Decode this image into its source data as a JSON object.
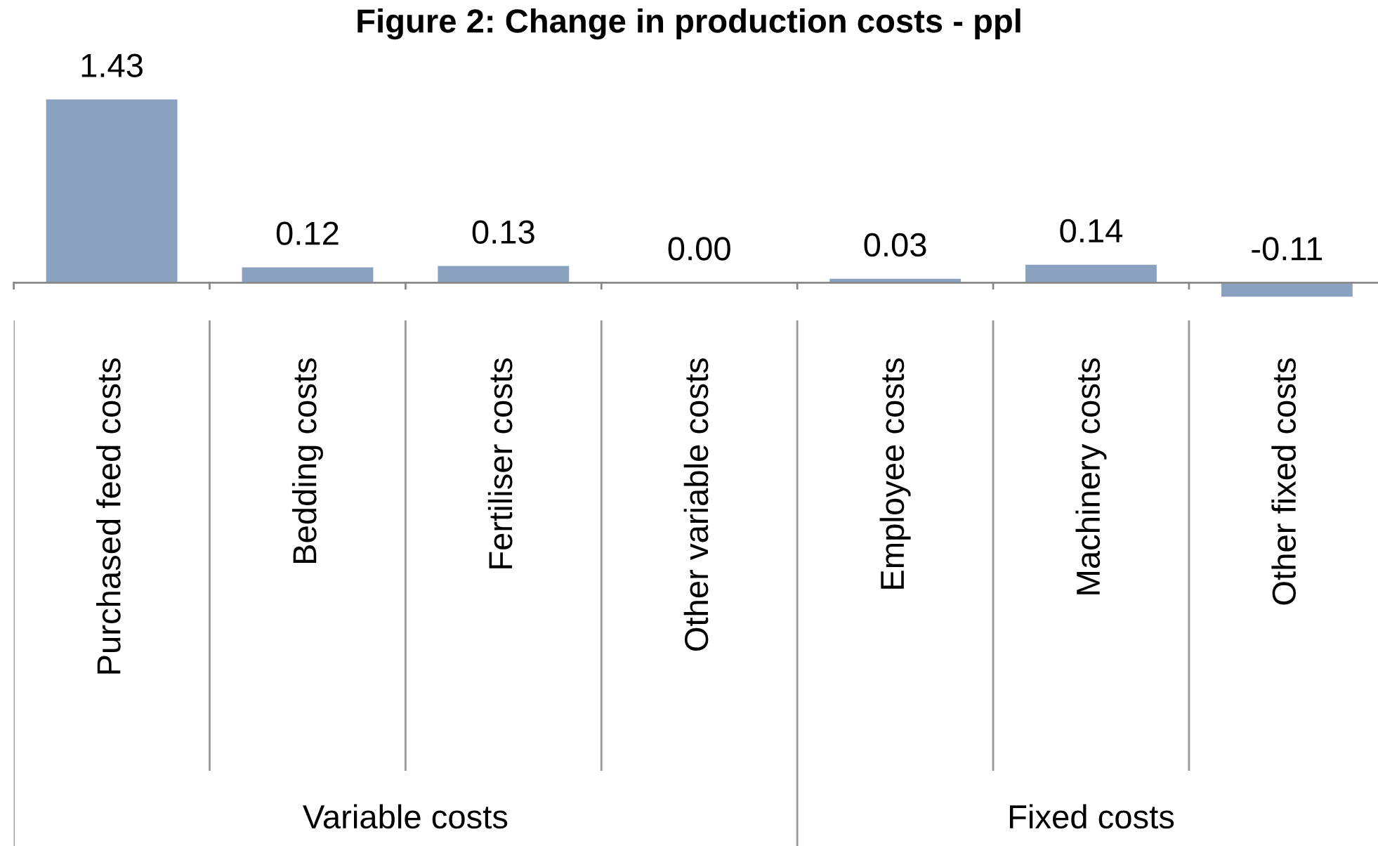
{
  "chart_data": {
    "type": "bar",
    "title": "Figure 2: Change in production costs - ppl",
    "categories": [
      "Purchased feed costs",
      "Bedding costs",
      "Fertiliser costs",
      "Other variable costs",
      "Employee costs",
      "Machinery costs",
      "Other fixed costs"
    ],
    "values": [
      1.43,
      0.12,
      0.13,
      0.0,
      0.03,
      0.14,
      -0.11
    ],
    "color": "#8aa2c0",
    "value_labels": [
      "1.43",
      "0.12",
      "0.13",
      "0.00",
      "0.03",
      "0.14",
      "-0.11"
    ],
    "annotations": [
      "Variable costs",
      "Fixed costs"
    ]
  }
}
